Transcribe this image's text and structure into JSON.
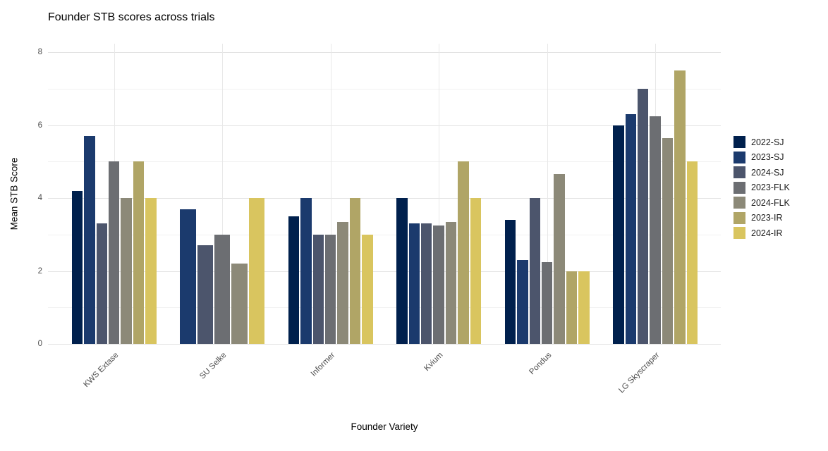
{
  "chart_data": {
    "type": "bar",
    "title": "Founder STB scores across trials",
    "xlabel": "Founder Variety",
    "ylabel": "Mean STB Score",
    "categories": [
      "KWS Extase",
      "SU Selke",
      "Informer",
      "Kvium",
      "Pondus",
      "LG Skyscraper"
    ],
    "series": [
      {
        "name": "2022-SJ",
        "color": "#00204D",
        "values": [
          4.2,
          null,
          3.5,
          4.0,
          3.4,
          6.0
        ]
      },
      {
        "name": "2023-SJ",
        "color": "#1B3A6D",
        "values": [
          5.7,
          3.7,
          4.0,
          3.3,
          2.3,
          6.3
        ]
      },
      {
        "name": "2024-SJ",
        "color": "#4C556C",
        "values": [
          3.3,
          2.7,
          3.0,
          3.3,
          4.0,
          7.0
        ]
      },
      {
        "name": "2023-FLK",
        "color": "#6C6E72",
        "values": [
          5.0,
          3.0,
          3.0,
          3.25,
          2.25,
          6.25
        ]
      },
      {
        "name": "2024-FLK",
        "color": "#8C8978",
        "values": [
          4.0,
          2.2,
          3.35,
          3.35,
          4.65,
          5.65
        ]
      },
      {
        "name": "2023-IR",
        "color": "#B0A566",
        "values": [
          5.0,
          null,
          4.0,
          5.0,
          2.0,
          7.5
        ]
      },
      {
        "name": "2024-IR",
        "color": "#D9C55F",
        "values": [
          4.0,
          4.0,
          3.0,
          4.0,
          2.0,
          5.0
        ]
      }
    ],
    "ylim": [
      0,
      8
    ],
    "yticks": [
      0,
      2,
      4,
      6,
      8
    ],
    "minor_yticks": [
      1,
      3,
      5,
      7
    ],
    "grid": "on",
    "legend_position": "right",
    "background_color": "#ffffff",
    "major_grid_color": "#e3e3e3",
    "minor_grid_color": "#f1f1f1",
    "tick_label_color": "#4d4d4d",
    "text_color": "#000000"
  }
}
